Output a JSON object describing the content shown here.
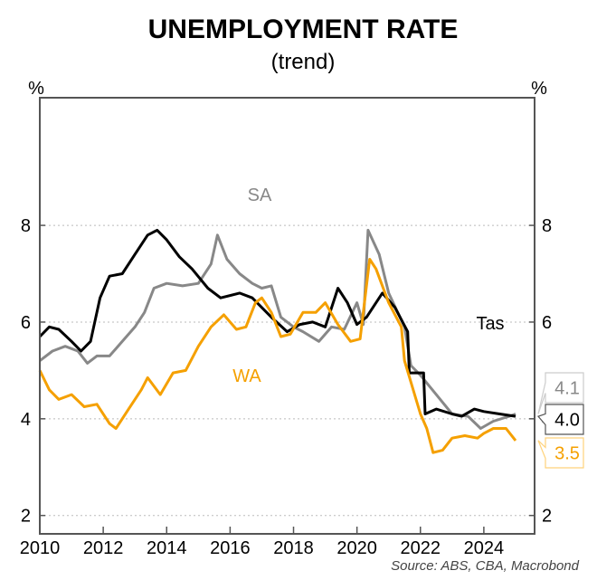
{
  "chart_data": {
    "type": "line",
    "title": "UNEMPLOYMENT RATE",
    "subtitle": "(trend)",
    "ylabel_left": "%",
    "ylabel_right": "%",
    "source": "Source: ABS, CBA, Macrobond",
    "xlim": [
      2010,
      2025.6
    ],
    "ylim": [
      1.62,
      10.64
    ],
    "xticks": [
      2010,
      2012,
      2014,
      2016,
      2018,
      2020,
      2022,
      2024
    ],
    "yticks": [
      2,
      4,
      6,
      8
    ],
    "grid": "horizontal dotted",
    "series": [
      {
        "name": "SA",
        "color": "#888888",
        "end_label": "4.1",
        "x": [
          2010.0,
          2010.4,
          2010.8,
          2011.2,
          2011.5,
          2011.8,
          2012.2,
          2012.6,
          2013.0,
          2013.3,
          2013.6,
          2014.0,
          2014.5,
          2015.0,
          2015.4,
          2015.6,
          2015.9,
          2016.3,
          2016.7,
          2017.0,
          2017.3,
          2017.6,
          2018.0,
          2018.3,
          2018.8,
          2019.2,
          2019.6,
          2020.0,
          2020.2,
          2020.35,
          2020.7,
          2021.0,
          2021.5,
          2021.7,
          2022.0,
          2022.5,
          2023.0,
          2023.5,
          2023.9,
          2024.3,
          2024.8,
          2025.0
        ],
        "y": [
          5.2,
          5.4,
          5.5,
          5.4,
          5.15,
          5.3,
          5.3,
          5.6,
          5.9,
          6.2,
          6.7,
          6.8,
          6.75,
          6.8,
          7.2,
          7.8,
          7.3,
          7.0,
          6.8,
          6.7,
          6.75,
          6.1,
          5.9,
          5.8,
          5.6,
          5.9,
          5.85,
          6.4,
          5.95,
          7.9,
          7.4,
          6.6,
          5.9,
          5.1,
          4.9,
          4.5,
          4.1,
          4.05,
          3.8,
          3.95,
          4.05,
          4.1
        ]
      },
      {
        "name": "Tas",
        "color": "#000000",
        "end_label": "4.0",
        "x": [
          2010.0,
          2010.3,
          2010.6,
          2011.0,
          2011.3,
          2011.6,
          2011.9,
          2012.2,
          2012.6,
          2013.0,
          2013.4,
          2013.7,
          2014.0,
          2014.4,
          2014.8,
          2015.3,
          2015.7,
          2016.3,
          2016.7,
          2017.3,
          2017.8,
          2018.2,
          2018.6,
          2019.0,
          2019.4,
          2019.7,
          2020.0,
          2020.3,
          2020.8,
          2021.2,
          2021.6,
          2021.65,
          2022.1,
          2022.15,
          2022.5,
          2023.0,
          2023.3,
          2023.7,
          2024.0,
          2024.5,
          2025.0
        ],
        "y": [
          5.7,
          5.9,
          5.85,
          5.6,
          5.4,
          5.6,
          6.5,
          6.95,
          7.0,
          7.4,
          7.8,
          7.9,
          7.7,
          7.35,
          7.1,
          6.7,
          6.5,
          6.6,
          6.5,
          6.1,
          5.8,
          5.95,
          6.0,
          5.9,
          6.7,
          6.4,
          5.95,
          6.1,
          6.6,
          6.3,
          5.8,
          4.95,
          4.95,
          4.1,
          4.2,
          4.1,
          4.05,
          4.2,
          4.15,
          4.1,
          4.05
        ]
      },
      {
        "name": "WA",
        "color": "#f5a000",
        "end_label": "3.5",
        "x": [
          2010.0,
          2010.3,
          2010.6,
          2011.0,
          2011.4,
          2011.8,
          2012.2,
          2012.4,
          2012.8,
          2013.2,
          2013.4,
          2013.8,
          2014.2,
          2014.6,
          2015.0,
          2015.4,
          2015.8,
          2016.2,
          2016.5,
          2016.8,
          2017.0,
          2017.3,
          2017.6,
          2017.9,
          2018.3,
          2018.7,
          2019.0,
          2019.4,
          2019.8,
          2020.1,
          2020.4,
          2020.6,
          2021.0,
          2021.4,
          2021.5,
          2022.0,
          2022.2,
          2022.4,
          2022.7,
          2023.0,
          2023.4,
          2023.8,
          2024.0,
          2024.3,
          2024.7,
          2025.0
        ],
        "y": [
          5.0,
          4.6,
          4.4,
          4.5,
          4.25,
          4.3,
          3.9,
          3.8,
          4.2,
          4.6,
          4.85,
          4.5,
          4.95,
          5.0,
          5.5,
          5.9,
          6.15,
          5.85,
          5.9,
          6.4,
          6.5,
          6.2,
          5.7,
          5.75,
          6.2,
          6.2,
          6.4,
          5.95,
          5.6,
          5.65,
          7.3,
          7.1,
          6.4,
          5.9,
          5.2,
          4.1,
          3.8,
          3.3,
          3.35,
          3.6,
          3.65,
          3.6,
          3.7,
          3.8,
          3.8,
          3.55
        ]
      }
    ]
  }
}
